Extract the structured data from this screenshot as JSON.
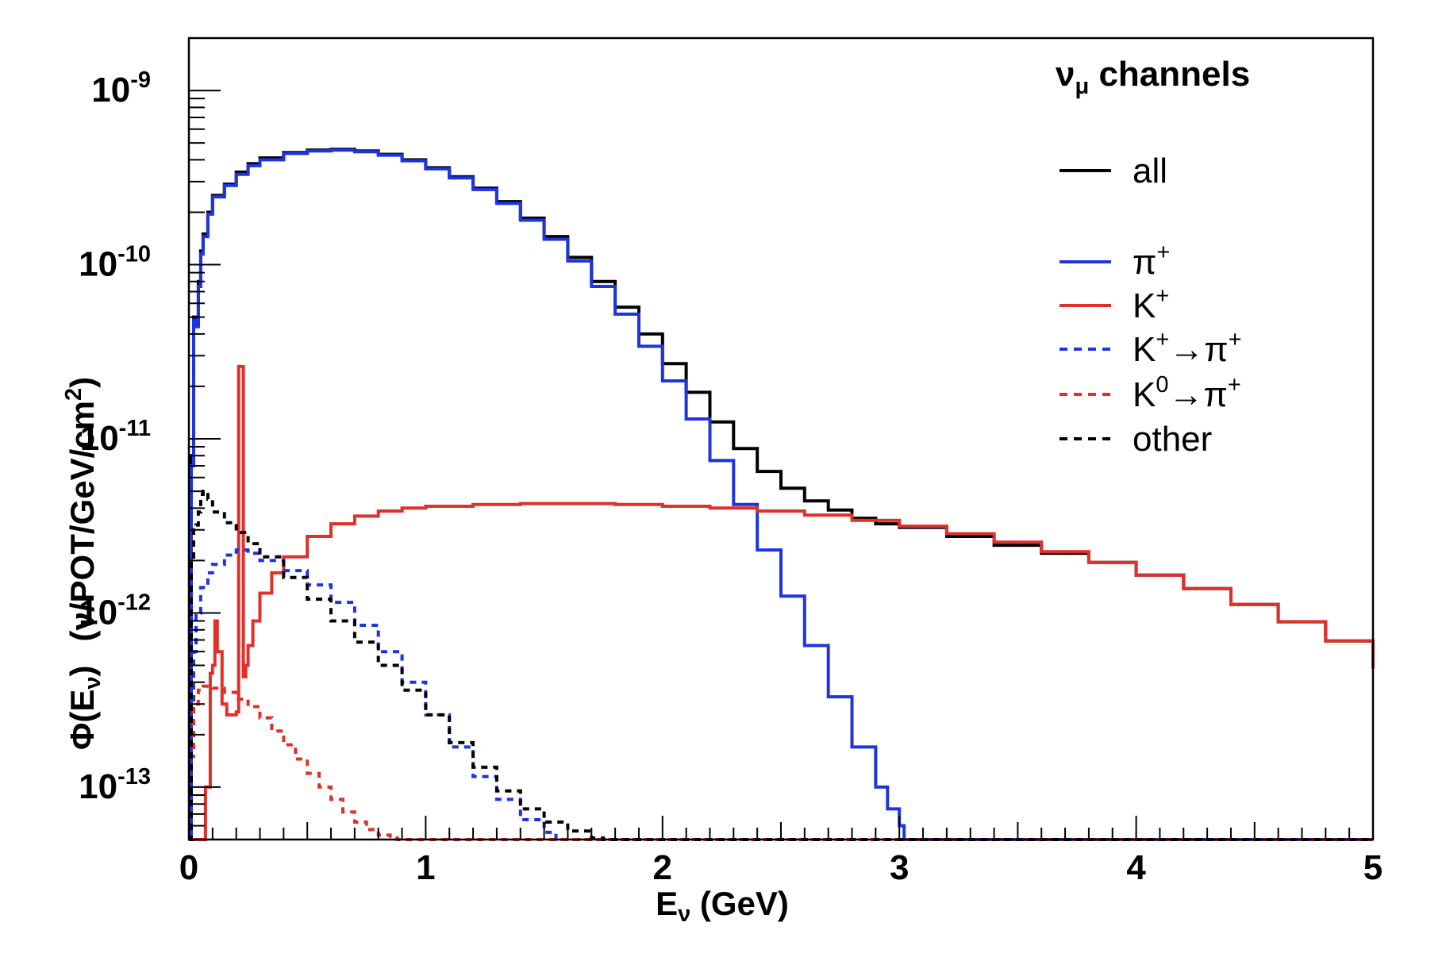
{
  "chart_data": {
    "type": "line",
    "title": "",
    "xlabel": "E",
    "xlabel_sub": "ν",
    "xlabel_unit": "(GeV)",
    "ylabel_phi": "Φ(E",
    "ylabel_sub": "ν",
    "ylabel_close": ")",
    "ylabel_units": "(ν/POT/GeV/cm",
    "ylabel_units_sup": "2",
    "ylabel_units_close": ")",
    "xlim": [
      0,
      5
    ],
    "ylim": [
      5e-14,
      2e-09
    ],
    "yscale": "log",
    "grid": false,
    "legend_position": "top-right",
    "legend_title": {
      "main": "ν",
      "sub": "μ",
      "rest": " channels"
    },
    "x_ticks": [
      "0",
      "1",
      "2",
      "3",
      "4",
      "5"
    ],
    "y_ticks": [
      {
        "value": 1e-13,
        "base": "10",
        "exp": "-13"
      },
      {
        "value": 1e-12,
        "base": "10",
        "exp": "-12"
      },
      {
        "value": 1e-11,
        "base": "10",
        "exp": "-11"
      },
      {
        "value": 1e-10,
        "base": "10",
        "exp": "-10"
      },
      {
        "value": 1e-09,
        "base": "10",
        "exp": "-9"
      }
    ],
    "series": [
      {
        "name": "all",
        "legend": {
          "base": "all",
          "sup1": "",
          "mid": "",
          "sup2": ""
        },
        "color": "#000000",
        "dashed": false,
        "x": [
          0,
          0.01,
          0.02,
          0.03,
          0.04,
          0.05,
          0.06,
          0.08,
          0.1,
          0.15,
          0.2,
          0.25,
          0.3,
          0.4,
          0.5,
          0.6,
          0.7,
          0.8,
          0.9,
          1.0,
          1.1,
          1.2,
          1.3,
          1.4,
          1.5,
          1.6,
          1.7,
          1.8,
          1.9,
          2.0,
          2.1,
          2.2,
          2.3,
          2.4,
          2.5,
          2.6,
          2.7,
          2.8,
          2.9,
          3.0,
          3.2,
          3.4,
          3.6,
          3.8,
          4.0,
          4.2,
          4.4,
          4.6,
          4.8,
          5.0
        ],
        "y": [
          5e-14,
          8e-12,
          5e-11,
          4.5e-11,
          8e-11,
          1.2e-10,
          1.5e-10,
          2e-10,
          2.5e-10,
          2.9e-10,
          3.4e-10,
          3.8e-10,
          4.1e-10,
          4.4e-10,
          4.55e-10,
          4.6e-10,
          4.5e-10,
          4.3e-10,
          4e-10,
          3.6e-10,
          3.2e-10,
          2.75e-10,
          2.3e-10,
          1.85e-10,
          1.45e-10,
          1.1e-10,
          8e-11,
          5.7e-11,
          4e-11,
          2.7e-11,
          1.85e-11,
          1.25e-11,
          8.8e-12,
          6.5e-12,
          5.2e-12,
          4.4e-12,
          3.9e-12,
          3.5e-12,
          3.25e-12,
          3.1e-12,
          2.75e-12,
          2.45e-12,
          2.2e-12,
          1.95e-12,
          1.65e-12,
          1.38e-12,
          1.12e-12,
          8.9e-13,
          6.9e-13,
          4.8e-13
        ]
      },
      {
        "name": "π+",
        "legend": {
          "base": "π",
          "sup1": "+",
          "mid": "",
          "sup2": ""
        },
        "color": "#1f34e0",
        "dashed": false,
        "x": [
          0,
          0.01,
          0.02,
          0.03,
          0.04,
          0.05,
          0.06,
          0.08,
          0.1,
          0.15,
          0.2,
          0.25,
          0.3,
          0.4,
          0.5,
          0.6,
          0.7,
          0.8,
          0.9,
          1.0,
          1.1,
          1.2,
          1.3,
          1.4,
          1.5,
          1.6,
          1.7,
          1.8,
          1.9,
          2.0,
          2.1,
          2.2,
          2.3,
          2.4,
          2.5,
          2.6,
          2.7,
          2.8,
          2.9,
          2.95,
          3.0,
          3.02,
          3.04,
          3.05,
          3.2,
          5.0
        ],
        "y": [
          5e-14,
          7e-12,
          4.8e-11,
          4.4e-11,
          7.5e-11,
          1.15e-10,
          1.45e-10,
          1.95e-10,
          2.45e-10,
          2.85e-10,
          3.3e-10,
          3.7e-10,
          4e-10,
          4.35e-10,
          4.5e-10,
          4.55e-10,
          4.45e-10,
          4.25e-10,
          3.95e-10,
          3.55e-10,
          3.15e-10,
          2.7e-10,
          2.25e-10,
          1.8e-10,
          1.4e-10,
          1.05e-10,
          7.5e-11,
          5.2e-11,
          3.4e-11,
          2.15e-11,
          1.3e-11,
          7.5e-12,
          4.2e-12,
          2.3e-12,
          1.25e-12,
          6.5e-13,
          3.3e-13,
          1.7e-13,
          1e-13,
          7.5e-14,
          6e-14,
          5e-14,
          5e-14,
          5e-14,
          5e-14,
          5e-14
        ]
      },
      {
        "name": "K+",
        "legend": {
          "base": "K",
          "sup1": "+",
          "mid": "",
          "sup2": ""
        },
        "color": "#e0302a",
        "dashed": false,
        "x": [
          0,
          0.06,
          0.07,
          0.09,
          0.1,
          0.11,
          0.12,
          0.14,
          0.16,
          0.18,
          0.2,
          0.21,
          0.22,
          0.23,
          0.24,
          0.25,
          0.27,
          0.3,
          0.35,
          0.4,
          0.5,
          0.6,
          0.7,
          0.8,
          0.9,
          1.0,
          1.2,
          1.4,
          1.6,
          1.8,
          2.0,
          2.2,
          2.4,
          2.6,
          2.8,
          3.0,
          3.2,
          3.4,
          3.6,
          3.8,
          4.0,
          4.2,
          4.4,
          4.6,
          4.8,
          5.0
        ],
        "y": [
          5e-14,
          5e-14,
          1e-13,
          4.5e-13,
          5e-13,
          9e-13,
          6e-13,
          3e-13,
          2.6e-13,
          2.6e-13,
          2.7e-13,
          2.6e-11,
          2.6e-11,
          4.3e-13,
          5e-13,
          6.5e-13,
          9e-13,
          1.3e-12,
          1.7e-12,
          2.1e-12,
          2.75e-12,
          3.25e-12,
          3.6e-12,
          3.85e-12,
          4e-12,
          4.1e-12,
          4.2e-12,
          4.25e-12,
          4.25e-12,
          4.2e-12,
          4.1e-12,
          4e-12,
          3.85e-12,
          3.65e-12,
          3.4e-12,
          3.15e-12,
          2.85e-12,
          2.55e-12,
          2.25e-12,
          1.95e-12,
          1.65e-12,
          1.38e-12,
          1.12e-12,
          8.9e-13,
          6.9e-13,
          4.8e-13
        ]
      },
      {
        "name": "K+→π+",
        "legend": {
          "base": "K",
          "sup1": "+",
          "mid": "→π",
          "sup2": "+"
        },
        "color": "#1f34e0",
        "dashed": true,
        "x": [
          0,
          0.01,
          0.02,
          0.03,
          0.05,
          0.08,
          0.1,
          0.15,
          0.2,
          0.25,
          0.3,
          0.4,
          0.5,
          0.6,
          0.7,
          0.8,
          0.9,
          1.0,
          1.1,
          1.2,
          1.3,
          1.4,
          1.5,
          1.55,
          1.6,
          1.65,
          5.0
        ],
        "y": [
          5e-14,
          2e-13,
          6e-13,
          1e-12,
          1.4e-12,
          1.7e-12,
          1.9e-12,
          2.15e-12,
          2.3e-12,
          2.2e-12,
          2e-12,
          1.75e-12,
          1.45e-12,
          1.15e-12,
          8.5e-13,
          6e-13,
          4e-13,
          2.6e-13,
          1.7e-13,
          1.15e-13,
          8.5e-14,
          6.5e-14,
          5.5e-14,
          5e-14,
          5e-14,
          5e-14,
          5e-14
        ]
      },
      {
        "name": "K0→π+",
        "legend": {
          "base": "K",
          "sup1": "0",
          "mid": "→π",
          "sup2": "+"
        },
        "color": "#e0302a",
        "dashed": true,
        "x": [
          0,
          0.01,
          0.02,
          0.04,
          0.06,
          0.1,
          0.15,
          0.2,
          0.25,
          0.3,
          0.35,
          0.4,
          0.45,
          0.5,
          0.55,
          0.6,
          0.65,
          0.7,
          0.75,
          0.8,
          0.85,
          0.88,
          5.0
        ],
        "y": [
          5e-14,
          1.5e-13,
          3e-13,
          3.6e-13,
          3.8e-13,
          3.7e-13,
          3.5e-13,
          3.2e-13,
          2.9e-13,
          2.5e-13,
          2.1e-13,
          1.75e-13,
          1.45e-13,
          1.2e-13,
          1e-13,
          8.5e-14,
          7.2e-14,
          6.3e-14,
          5.7e-14,
          5.3e-14,
          5.1e-14,
          5e-14,
          5e-14
        ]
      },
      {
        "name": "other",
        "legend": {
          "base": "other",
          "sup1": "",
          "mid": "",
          "sup2": ""
        },
        "color": "#000000",
        "dashed": true,
        "x": [
          0,
          0.01,
          0.02,
          0.03,
          0.04,
          0.05,
          0.06,
          0.08,
          0.1,
          0.15,
          0.2,
          0.25,
          0.3,
          0.4,
          0.5,
          0.6,
          0.7,
          0.8,
          0.9,
          1.0,
          1.1,
          1.2,
          1.3,
          1.4,
          1.5,
          1.6,
          1.7,
          1.75,
          5.0
        ],
        "y": [
          5e-14,
          2e-12,
          3e-12,
          3.2e-12,
          3.8e-12,
          4.8e-12,
          5e-12,
          4.5e-12,
          3.8e-12,
          3.3e-12,
          2.9e-12,
          2.5e-12,
          2.1e-12,
          1.6e-12,
          1.2e-12,
          9e-13,
          6.8e-13,
          5e-13,
          3.6e-13,
          2.6e-13,
          1.8e-13,
          1.3e-13,
          9.5e-14,
          7.5e-14,
          6.3e-14,
          5.6e-14,
          5.1e-14,
          5e-14,
          5e-14
        ]
      }
    ]
  }
}
